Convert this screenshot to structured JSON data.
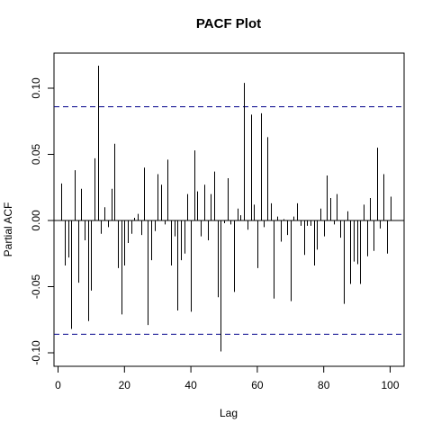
{
  "chart_data": {
    "type": "bar",
    "title": "PACF Plot",
    "xlabel": "Lag",
    "ylabel": "Partial ACF",
    "xlim": [
      0,
      103
    ],
    "ylim": [
      -0.1,
      0.12
    ],
    "x_ticks": [
      0,
      20,
      40,
      60,
      80,
      100
    ],
    "y_ticks": [
      -0.1,
      -0.05,
      0.0,
      0.05,
      0.1
    ],
    "y_tick_labels": [
      "-0.10",
      "-0.05",
      "0.00",
      "0.05",
      "0.10"
    ],
    "confidence_bounds": [
      0.086,
      -0.086
    ],
    "confidence_color": "#00008b",
    "lags": [
      1,
      2,
      3,
      4,
      5,
      6,
      7,
      8,
      9,
      10,
      11,
      12,
      13,
      14,
      15,
      16,
      17,
      18,
      19,
      20,
      21,
      22,
      23,
      24,
      25,
      26,
      27,
      28,
      29,
      30,
      31,
      32,
      33,
      34,
      35,
      36,
      37,
      38,
      39,
      40,
      41,
      42,
      43,
      44,
      45,
      46,
      47,
      48,
      49,
      50,
      51,
      52,
      53,
      54,
      55,
      56,
      57,
      58,
      59,
      60,
      61,
      62,
      63,
      64,
      65,
      66,
      67,
      68,
      69,
      70,
      71,
      72,
      73,
      74,
      75,
      76,
      77,
      78,
      79,
      80,
      81,
      82,
      83,
      84,
      85,
      86,
      87,
      88,
      89,
      90,
      91,
      92,
      93,
      94,
      95,
      96,
      97,
      98,
      99,
      100
    ],
    "values": [
      0.028,
      -0.034,
      -0.028,
      -0.082,
      0.038,
      -0.047,
      0.024,
      -0.015,
      -0.076,
      -0.053,
      0.047,
      0.117,
      -0.01,
      0.01,
      -0.005,
      0.024,
      0.058,
      -0.036,
      -0.071,
      -0.034,
      -0.017,
      -0.01,
      0.002,
      0.005,
      -0.011,
      0.04,
      -0.079,
      -0.03,
      -0.008,
      0.035,
      0.027,
      -0.003,
      0.046,
      -0.034,
      -0.012,
      -0.068,
      -0.03,
      -0.025,
      0.02,
      -0.069,
      0.053,
      0.022,
      -0.012,
      0.027,
      -0.015,
      0.02,
      0.037,
      -0.058,
      -0.099,
      -0.002,
      0.032,
      -0.003,
      -0.054,
      0.009,
      0.004,
      0.104,
      -0.007,
      0.08,
      0.012,
      -0.036,
      0.081,
      -0.005,
      0.063,
      0.013,
      -0.059,
      0.003,
      -0.016,
      0.001,
      -0.011,
      -0.061,
      0.003,
      0.013,
      -0.004,
      -0.026,
      -0.004,
      -0.004,
      -0.034,
      -0.022,
      0.009,
      -0.012,
      0.034,
      0.017,
      -0.003,
      0.02,
      -0.013,
      -0.063,
      0.007,
      -0.048,
      -0.031,
      -0.033,
      -0.048,
      0.012,
      -0.027,
      0.017,
      -0.023,
      0.055,
      -0.006,
      0.035,
      -0.025,
      0.018
    ]
  }
}
